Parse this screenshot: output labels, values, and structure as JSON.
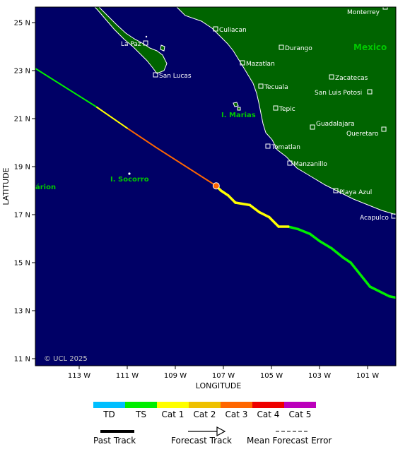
{
  "map": {
    "xlabel": "LONGITUDE",
    "ylabel": "LATITUDE",
    "copyright": "© UCL 2025",
    "lon_ticks": [
      {
        "label": "113 W",
        "value": -113
      },
      {
        "label": "111 W",
        "value": -111
      },
      {
        "label": "109 W",
        "value": -109
      },
      {
        "label": "107 W",
        "value": -107
      },
      {
        "label": "105 W",
        "value": -105
      },
      {
        "label": "103 W",
        "value": -103
      },
      {
        "label": "101 W",
        "value": -101
      }
    ],
    "lat_ticks": [
      {
        "label": "25 N",
        "value": 25
      },
      {
        "label": "23 N",
        "value": 23
      },
      {
        "label": "21 N",
        "value": 21
      },
      {
        "label": "19 N",
        "value": 19
      },
      {
        "label": "17 N",
        "value": 17
      },
      {
        "label": "15 N",
        "value": 15
      },
      {
        "label": "13 N",
        "value": 13
      },
      {
        "label": "11 N",
        "value": 11
      }
    ],
    "places": [
      {
        "name": "Monterrey"
      },
      {
        "name": "Culiacan"
      },
      {
        "name": "La Paz"
      },
      {
        "name": "Durango"
      },
      {
        "name": "Mazatlan"
      },
      {
        "name": "San Lucas"
      },
      {
        "name": "Zacatecas"
      },
      {
        "name": "Tecuala"
      },
      {
        "name": "San Luis Potosi"
      },
      {
        "name": "Tepic"
      },
      {
        "name": "Guadalajara"
      },
      {
        "name": "Queretaro"
      },
      {
        "name": "Tomatlan"
      },
      {
        "name": "Manzanillo"
      },
      {
        "name": "Playa Azul"
      },
      {
        "name": "Acapulco"
      }
    ],
    "regions": [
      {
        "name": "Mexico"
      },
      {
        "name": "I. Marias"
      },
      {
        "name": "I. Socorro"
      },
      {
        "name": "árion"
      }
    ],
    "colors": {
      "ocean": "#000066",
      "land": "#006400",
      "coast": "#ffffff",
      "region_label": "#00c800"
    }
  },
  "track": {
    "past": [
      {
        "lon": -99.6,
        "lat": 13.5,
        "cat": "TS"
      },
      {
        "lon": -100.1,
        "lat": 13.6,
        "cat": "TS"
      },
      {
        "lon": -100.9,
        "lat": 14.0,
        "cat": "TS"
      },
      {
        "lon": -101.7,
        "lat": 15.0,
        "cat": "TS"
      },
      {
        "lon": -102.0,
        "lat": 15.2,
        "cat": "TS"
      },
      {
        "lon": -102.5,
        "lat": 15.6,
        "cat": "TS"
      },
      {
        "lon": -103.0,
        "lat": 15.9,
        "cat": "TS"
      },
      {
        "lon": -103.4,
        "lat": 16.2,
        "cat": "TS"
      },
      {
        "lon": -103.9,
        "lat": 16.4,
        "cat": "TS"
      },
      {
        "lon": -104.3,
        "lat": 16.5,
        "cat": "Cat 1"
      },
      {
        "lon": -104.7,
        "lat": 16.5,
        "cat": "Cat 1"
      },
      {
        "lon": -105.1,
        "lat": 16.9,
        "cat": "Cat 1"
      },
      {
        "lon": -105.5,
        "lat": 17.1,
        "cat": "Cat 1"
      },
      {
        "lon": -105.9,
        "lat": 17.4,
        "cat": "Cat 1"
      },
      {
        "lon": -106.5,
        "lat": 17.5,
        "cat": "Cat 1"
      },
      {
        "lon": -106.8,
        "lat": 17.8,
        "cat": "Cat 1"
      },
      {
        "lon": -107.1,
        "lat": 18.0,
        "cat": "Cat 1"
      },
      {
        "lon": -107.3,
        "lat": 18.2,
        "cat": "Cat 1"
      }
    ],
    "forecast": [
      {
        "lon": -107.3,
        "lat": 18.2,
        "cat": "Cat 3"
      },
      {
        "lon": -109.8,
        "lat": 19.8,
        "cat": "Cat 3"
      },
      {
        "lon": -111.0,
        "lat": 20.6,
        "cat": "Cat 1"
      },
      {
        "lon": -112.3,
        "lat": 21.5,
        "cat": "TS"
      },
      {
        "lon": -115.0,
        "lat": 23.2,
        "cat": "TS"
      }
    ],
    "current_position": {
      "lon": -107.3,
      "lat": 18.2
    }
  },
  "legend": {
    "categories": [
      {
        "label": "TD",
        "color": "#00bfff"
      },
      {
        "label": "TS",
        "color": "#00ee00"
      },
      {
        "label": "Cat 1",
        "color": "#ffff00"
      },
      {
        "label": "Cat 2",
        "color": "#eec000"
      },
      {
        "label": "Cat 3",
        "color": "#ff6600"
      },
      {
        "label": "Cat 4",
        "color": "#ee0000"
      },
      {
        "label": "Cat 5",
        "color": "#bb00bb"
      }
    ],
    "past_track_label": "Past Track",
    "forecast_track_label": "Forecast Track",
    "mean_error_label": "Mean Forecast Error"
  }
}
